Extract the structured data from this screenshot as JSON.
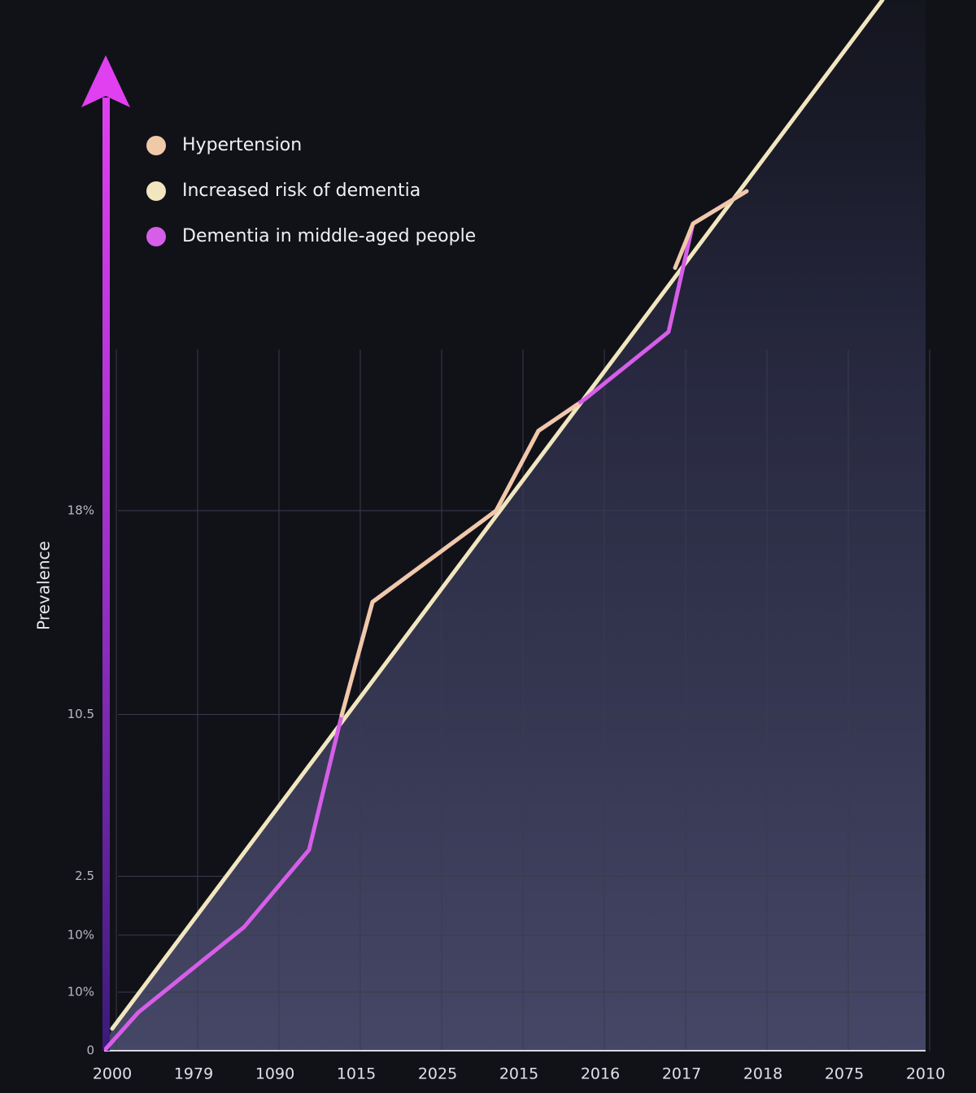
{
  "chart_data": {
    "type": "line",
    "y_label": "Prevalence",
    "xlim": [
      0,
      10.1
    ],
    "xticks": [
      {
        "value": 0,
        "label": "2000"
      },
      {
        "value": 1,
        "label": "1979"
      },
      {
        "value": 2,
        "label": "1090"
      },
      {
        "value": 3,
        "label": "1015"
      },
      {
        "value": 4,
        "label": "2025"
      },
      {
        "value": 5,
        "label": "2015"
      },
      {
        "value": 6,
        "label": "2016"
      },
      {
        "value": 7,
        "label": "2017"
      },
      {
        "value": 8,
        "label": "2018"
      },
      {
        "value": 9,
        "label": "2075"
      },
      {
        "value": 10,
        "label": "2010"
      }
    ],
    "ylim": [
      0,
      100
    ],
    "yticks": [
      0,
      {
        "value": 5.57,
        "label": "10%"
      },
      {
        "value": 11,
        "label": "10%"
      },
      {
        "value": 16.6,
        "label": "2.5"
      },
      {
        "value": 32,
        "label": "10.5"
      },
      {
        "value": 51.4,
        "label": "18%"
      }
    ],
    "grid": true,
    "legend": "upper left",
    "series": [
      {
        "name": "Hypertension",
        "color": "#f0c9a8",
        "x": [
          2.92,
          3.3,
          4.82,
          5.34,
          5.82,
          6.5,
          7.02,
          7.24,
          7.9
        ],
        "values": [
          31.9,
          42.7,
          51.4,
          59.0,
          61.5,
          null,
          74.5,
          78.7,
          81.8
        ]
      },
      {
        "name": "Increased risk of dementia",
        "color": "#f1e6bf",
        "x": [
          0.1,
          9.57
        ],
        "values": [
          2.1,
          100
        ]
      },
      {
        "name": "Dementia in middle-aged people",
        "color": "#d65ee8",
        "x": [
          0,
          0.42,
          1.72,
          2.52,
          2.92,
          3.3,
          4.82,
          5.34,
          5.92,
          6.94,
          7.24,
          7.9
        ],
        "values": [
          0,
          3.64,
          11.76,
          19.12,
          31.89,
          42.72,
          51.39,
          58.98,
          62.07,
          68.42,
          78.72,
          81.81
        ]
      }
    ]
  }
}
